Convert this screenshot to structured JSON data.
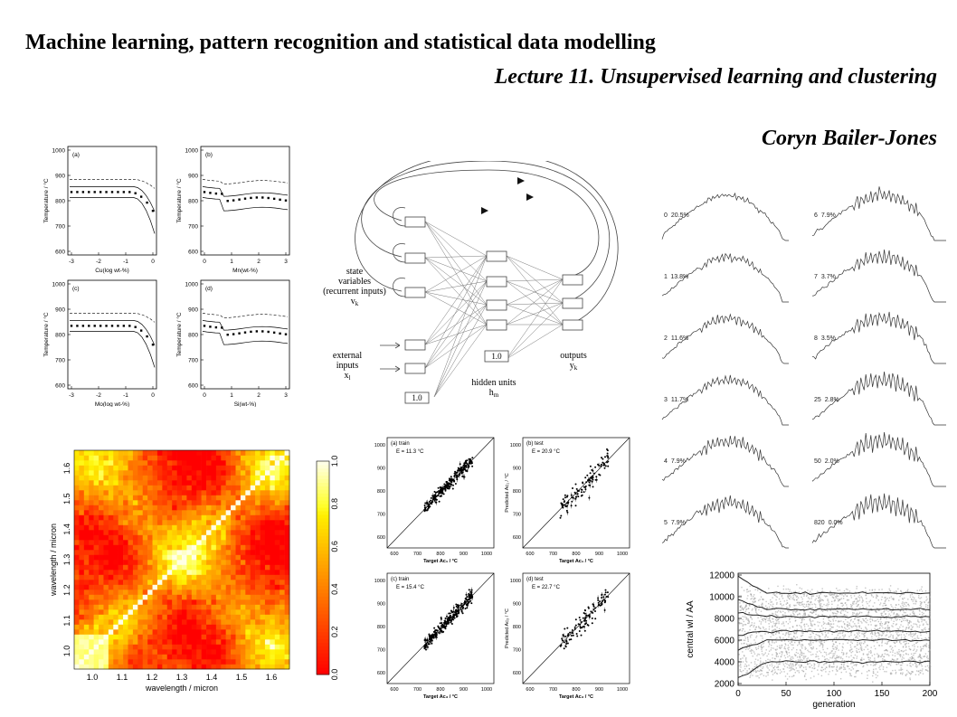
{
  "header": {
    "title": "Machine learning, pattern recognition and statistical data modelling",
    "subtitle": "Lecture 11. Unsupervised learning and clustering",
    "author": "Coryn Bailer-Jones"
  },
  "panels_top_left": {
    "ylabel": "Temperature / °C",
    "yticks": [
      "1000",
      "900",
      "800",
      "700",
      "600"
    ],
    "plots": [
      {
        "tag": "(a)",
        "xlabel": "Cu(log wt-%)",
        "xticks": [
          "-3",
          "-2",
          "-1",
          "0"
        ]
      },
      {
        "tag": "(b)",
        "xlabel": "Mn(wt-%)",
        "xticks": [
          "0",
          "1",
          "2",
          "3"
        ]
      },
      {
        "tag": "(c)",
        "xlabel": "Mo(log wt-%)",
        "xticks": [
          "-3",
          "-2",
          "-1",
          "0"
        ]
      },
      {
        "tag": "(d)",
        "xlabel": "Si(wt-%)",
        "xticks": [
          "0",
          "1",
          "2",
          "3"
        ]
      }
    ]
  },
  "network": {
    "state_label": [
      "state",
      "variables",
      "(recurrent inputs)",
      "v"
    ],
    "state_sub": "k",
    "external_label": [
      "external",
      "inputs",
      "x"
    ],
    "external_sub": "l",
    "hidden_label": [
      "hidden units",
      "h"
    ],
    "hidden_sub": "m",
    "outputs_label": [
      "outputs",
      "y"
    ],
    "outputs_sub": "k",
    "bias_in": "1.0",
    "bias_hidden": "1.0"
  },
  "spectra": {
    "left": [
      {
        "id": "0",
        "pct": "20.5%"
      },
      {
        "id": "1",
        "pct": "13.8%"
      },
      {
        "id": "2",
        "pct": "11.6%"
      },
      {
        "id": "3",
        "pct": "11.7%"
      },
      {
        "id": "4",
        "pct": "7.9%"
      },
      {
        "id": "5",
        "pct": "7.9%"
      }
    ],
    "right": [
      {
        "id": "6",
        "pct": "7.9%"
      },
      {
        "id": "7",
        "pct": "3.7%"
      },
      {
        "id": "8",
        "pct": "3.5%"
      },
      {
        "id": "25",
        "pct": "2.8%"
      },
      {
        "id": "50",
        "pct": "2.0%"
      },
      {
        "id": "820",
        "pct": "0.0%"
      }
    ]
  },
  "heatmap": {
    "xlabel": "wavelength / micron",
    "ylabel": "wavelength / micron",
    "xticks": [
      "1.0",
      "1.1",
      "1.2",
      "1.3",
      "1.4",
      "1.5",
      "1.6"
    ],
    "yticks": [
      "1.0",
      "1.1",
      "1.2",
      "1.3",
      "1.4",
      "1.5",
      "1.6"
    ],
    "colorbar_ticks": [
      "0.0",
      "0.2",
      "0.4",
      "0.6",
      "0.8",
      "1.0"
    ]
  },
  "scatter_panels": [
    {
      "tag": "(a) train",
      "err": "E = 11.3 °C",
      "ylabel": "",
      "xlabel": "Target Ac₁ / °C",
      "xticks": [
        "600",
        "700",
        "800",
        "900",
        "1000"
      ],
      "yticks": [
        "1000",
        "900",
        "800",
        "700",
        "600"
      ]
    },
    {
      "tag": "(b) test",
      "err": "E = 20.9 °C",
      "ylabel": "Predicted Ac₁ / °C",
      "xlabel": "Target Ac₁ / °C",
      "xticks": [
        "600",
        "700",
        "800",
        "900",
        "1000"
      ],
      "yticks": [
        "1000",
        "900",
        "800",
        "700",
        "600"
      ]
    },
    {
      "tag": "(c) train",
      "err": "E = 15.4 °C",
      "ylabel": "",
      "xlabel": "Target Ac₃ / °C",
      "xticks": [
        "600",
        "700",
        "800",
        "900",
        "1000"
      ],
      "yticks": [
        "1000",
        "900",
        "800",
        "700",
        "600"
      ]
    },
    {
      "tag": "(d) test",
      "err": "E = 22.7 °C",
      "ylabel": "Predicted Ac₃ / °C",
      "xlabel": "Target Ac₃ / °C",
      "xticks": [
        "600",
        "700",
        "800",
        "900",
        "1000"
      ],
      "yticks": [
        "1000",
        "900",
        "800",
        "700",
        "600"
      ]
    }
  ],
  "generation_plot": {
    "ylabel": "central wl / AA",
    "xlabel": "generation",
    "xticks": [
      "0",
      "50",
      "100",
      "150",
      "200"
    ],
    "yticks": [
      "12000",
      "10000",
      "8000",
      "6000",
      "4000",
      "2000"
    ]
  }
}
